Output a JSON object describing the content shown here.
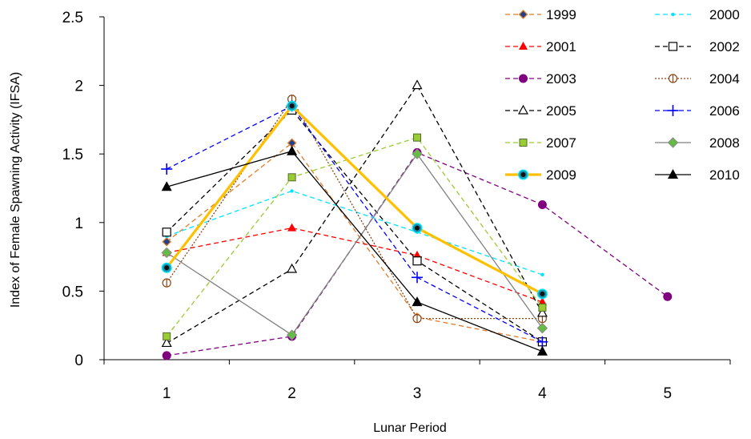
{
  "chart_data": {
    "type": "line",
    "title": "",
    "xlabel": "Lunar Period",
    "ylabel": "Index of Female Spawning Activity (IFSA)",
    "x_ticks": [
      1,
      2,
      3,
      4,
      5
    ],
    "y_ticks": [
      "0",
      "0.5",
      "1",
      "1.5",
      "2",
      "2.5"
    ],
    "xlim": [
      0.5,
      5.5
    ],
    "ylim": [
      0,
      2.5
    ],
    "grid": false,
    "legend_position": "top-right",
    "series": [
      {
        "name": "1999",
        "color": "#E07B27",
        "dash": "dashed",
        "marker": "diamond-orange",
        "points": [
          [
            1,
            0.86
          ],
          [
            2,
            1.58
          ],
          [
            3,
            0.31
          ],
          [
            4,
            0.13
          ]
        ]
      },
      {
        "name": "2000",
        "color": "#00E5FF",
        "dash": "dashed",
        "marker": "small-dot",
        "points": [
          [
            1,
            0.9
          ],
          [
            2,
            1.23
          ],
          [
            3,
            0.93
          ],
          [
            4,
            0.62
          ]
        ]
      },
      {
        "name": "2001",
        "color": "#FF0000",
        "dash": "dashed",
        "marker": "triangle",
        "points": [
          [
            1,
            0.78
          ],
          [
            2,
            0.96
          ],
          [
            3,
            0.76
          ],
          [
            4,
            0.42
          ]
        ]
      },
      {
        "name": "2002",
        "color": "#000000",
        "dash": "dashed",
        "marker": "open-square",
        "points": [
          [
            1,
            0.93
          ],
          [
            2,
            1.82
          ],
          [
            3,
            0.72
          ],
          [
            4,
            0.13
          ]
        ]
      },
      {
        "name": "2003",
        "color": "#800080",
        "dash": "dashed",
        "marker": "circle",
        "points": [
          [
            1,
            0.03
          ],
          [
            2,
            0.17
          ],
          [
            3,
            1.51
          ],
          [
            4,
            1.13
          ],
          [
            5,
            0.46
          ]
        ]
      },
      {
        "name": "2004",
        "color": "#8B4513",
        "dash": "dotted",
        "marker": "open-circle-plus",
        "points": [
          [
            1,
            0.56
          ],
          [
            2,
            1.9
          ],
          [
            3,
            0.3
          ],
          [
            4,
            0.3
          ]
        ]
      },
      {
        "name": "2005",
        "color": "#000000",
        "dash": "dashed",
        "marker": "open-triangle",
        "points": [
          [
            1,
            0.12
          ],
          [
            2,
            0.66
          ],
          [
            3,
            2.0
          ],
          [
            4,
            0.34
          ]
        ]
      },
      {
        "name": "2006",
        "color": "#0000FF",
        "dash": "dashed",
        "marker": "plus",
        "points": [
          [
            1,
            1.39
          ],
          [
            2,
            1.85
          ],
          [
            3,
            0.6
          ],
          [
            4,
            0.13
          ]
        ]
      },
      {
        "name": "2007",
        "color": "#99CC33",
        "dash": "dashed",
        "marker": "square-green",
        "points": [
          [
            1,
            0.17
          ],
          [
            2,
            1.33
          ],
          [
            3,
            1.62
          ],
          [
            4,
            0.38
          ]
        ]
      },
      {
        "name": "2008",
        "color": "#808080",
        "dash": "solid",
        "marker": "diamond-green",
        "points": [
          [
            1,
            0.78
          ],
          [
            2,
            0.18
          ],
          [
            3,
            1.5
          ],
          [
            4,
            0.23
          ]
        ]
      },
      {
        "name": "2009",
        "color": "#FFC000",
        "dash": "solid-thick",
        "marker": "circle-cyan-black",
        "points": [
          [
            1,
            0.67
          ],
          [
            2,
            1.85
          ],
          [
            3,
            0.96
          ],
          [
            4,
            0.48
          ]
        ]
      },
      {
        "name": "2010",
        "color": "#000000",
        "dash": "solid",
        "marker": "filled-triangle",
        "points": [
          [
            1,
            1.26
          ],
          [
            2,
            1.52
          ],
          [
            3,
            0.42
          ],
          [
            4,
            0.06
          ]
        ]
      }
    ]
  }
}
